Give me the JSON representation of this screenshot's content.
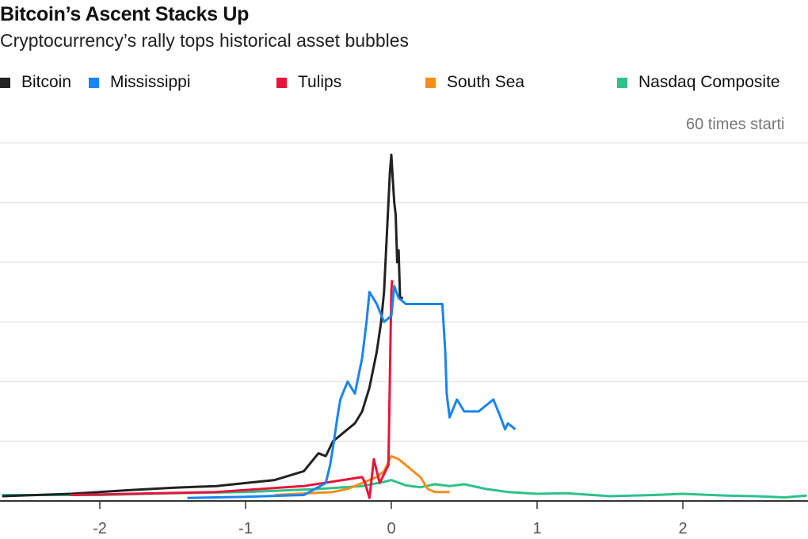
{
  "chart_data": {
    "type": "line",
    "title": "Bitcoin’s Ascent Stacks Up",
    "subtitle": "Cryptocurrency’s rally tops historical asset bubbles",
    "note": "60 times starti",
    "xlim": [
      -2.67,
      2.85
    ],
    "ylim": [
      0,
      60
    ],
    "x_ticks": [
      -2,
      -1,
      0,
      1,
      2
    ],
    "x_tick_labels": [
      "-2",
      "-1",
      "0",
      "1",
      "2"
    ],
    "y_gridlines": [
      10,
      20,
      30,
      40,
      50,
      60
    ],
    "grid": true,
    "legend_placement": "top",
    "series": [
      {
        "name": "Bitcoin",
        "color": "#222222",
        "x": [
          -2.67,
          -2.2,
          -1.8,
          -1.5,
          -1.2,
          -1.0,
          -0.8,
          -0.6,
          -0.5,
          -0.45,
          -0.4,
          -0.35,
          -0.3,
          -0.25,
          -0.2,
          -0.15,
          -0.1,
          -0.07,
          -0.05,
          -0.03,
          -0.01,
          0.0,
          0.01,
          0.02,
          0.03,
          0.04,
          0.05,
          0.06,
          0.08
        ],
        "y": [
          0.8,
          1.2,
          1.8,
          2.2,
          2.5,
          3,
          3.5,
          5,
          8,
          7.5,
          10,
          11,
          12,
          13,
          15,
          19,
          25,
          30,
          35,
          45,
          55,
          58,
          54,
          50,
          48,
          40,
          42,
          34,
          34
        ]
      },
      {
        "name": "Mississippi",
        "color": "#1a84f0",
        "x": [
          -1.4,
          -1.0,
          -0.6,
          -0.45,
          -0.42,
          -0.4,
          -0.37,
          -0.35,
          -0.3,
          -0.25,
          -0.2,
          -0.17,
          -0.15,
          -0.1,
          -0.05,
          0.0,
          0.02,
          0.05,
          0.1,
          0.2,
          0.35,
          0.37,
          0.38,
          0.4,
          0.45,
          0.5,
          0.6,
          0.7,
          0.75,
          0.78,
          0.8,
          0.85
        ],
        "y": [
          0.5,
          0.7,
          1,
          3,
          6,
          9,
          14,
          17,
          20,
          18,
          24,
          30,
          35,
          33,
          30,
          31,
          36,
          34,
          33,
          33,
          33,
          25,
          18,
          14,
          17,
          15,
          15,
          17,
          14,
          12,
          13,
          12
        ]
      },
      {
        "name": "Tulips",
        "color": "#e8143c",
        "x": [
          -2.2,
          -1.2,
          -0.6,
          -0.2,
          -0.18,
          -0.15,
          -0.12,
          -0.08,
          -0.02,
          0.0,
          0.005
        ],
        "y": [
          1,
          1.5,
          2.5,
          4,
          3,
          0.5,
          7,
          3,
          6,
          35,
          37
        ]
      },
      {
        "name": "South Sea",
        "color": "#f28e1c",
        "x": [
          -0.8,
          -0.4,
          -0.3,
          -0.2,
          -0.1,
          -0.05,
          0.0,
          0.05,
          0.1,
          0.15,
          0.2,
          0.25,
          0.3,
          0.4
        ],
        "y": [
          1,
          1.5,
          2,
          3,
          4,
          5,
          7.5,
          7,
          6,
          5,
          4,
          2,
          1.5,
          1.5
        ]
      },
      {
        "name": "Nasdaq Composite",
        "color": "#2ec18a",
        "x": [
          -2.67,
          -2.0,
          -1.5,
          -1.0,
          -0.5,
          -0.2,
          -0.05,
          0.0,
          0.1,
          0.2,
          0.3,
          0.4,
          0.5,
          0.65,
          0.8,
          1.0,
          1.2,
          1.5,
          1.8,
          2.0,
          2.3,
          2.5,
          2.7,
          2.85
        ],
        "y": [
          1,
          1,
          1.3,
          1.5,
          2,
          2.5,
          3.2,
          3.5,
          2.6,
          2.3,
          2.8,
          2.5,
          2.8,
          2.0,
          1.5,
          1.2,
          1.3,
          0.8,
          1.0,
          1.2,
          0.9,
          0.8,
          0.6,
          0.9
        ]
      }
    ]
  }
}
